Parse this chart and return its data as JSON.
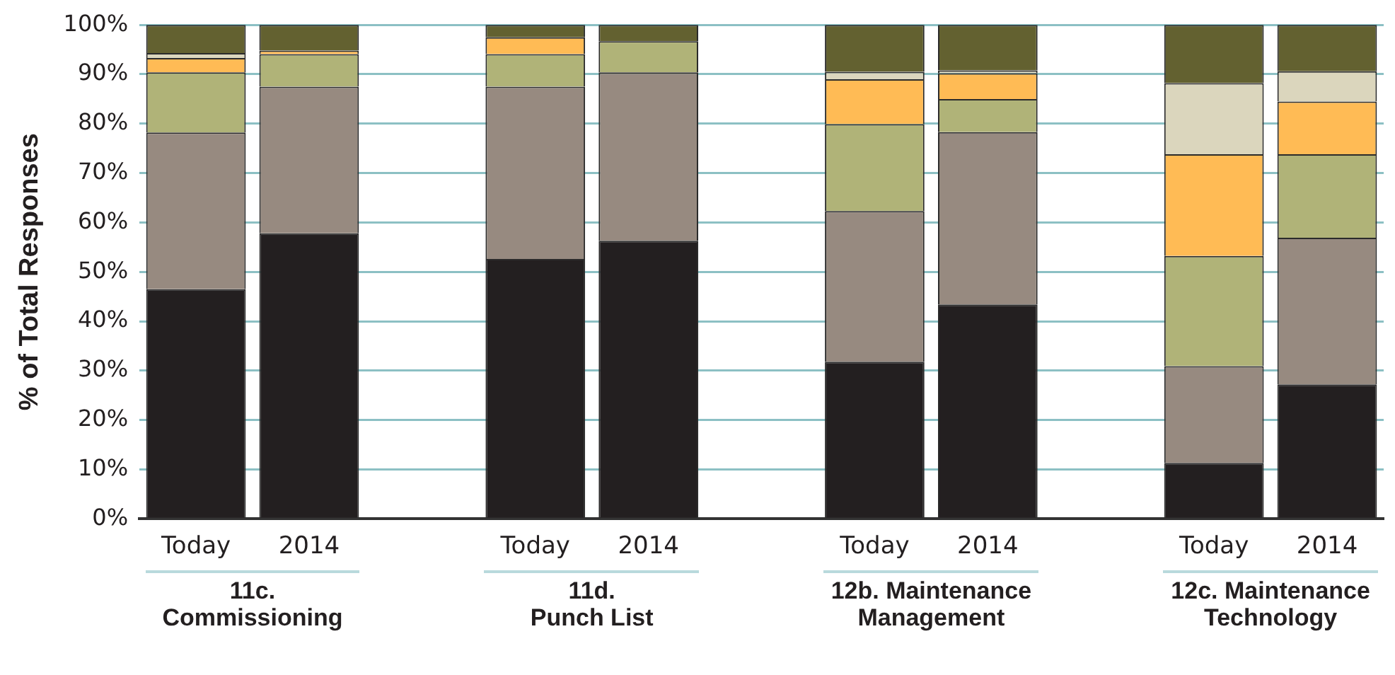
{
  "chart_data": {
    "type": "bar",
    "stacked": true,
    "ylabel": "% of Total Responses",
    "categories": [
      "Today",
      "2014",
      null,
      "Today",
      "2014",
      null,
      "Today",
      "2014",
      null,
      "Today",
      "2014"
    ],
    "series": [
      {
        "color": "#231f20",
        "values": [
          46.5,
          57.8,
          null,
          52.6,
          56.3,
          null,
          31.8,
          43.4,
          null,
          11.3,
          27.2
        ]
      },
      {
        "color": "#978a80",
        "values": [
          31.7,
          29.7,
          null,
          34.9,
          34.1,
          null,
          30.5,
          34.9,
          null,
          19.6,
          29.7
        ]
      },
      {
        "color": "#b0b378",
        "values": [
          12.2,
          6.6,
          null,
          6.6,
          6.3,
          null,
          17.6,
          6.7,
          null,
          22.3,
          16.9
        ]
      },
      {
        "color": "#ffbb55",
        "values": [
          2.9,
          0.7,
          null,
          3.4,
          0,
          null,
          9.1,
          5.2,
          null,
          20.6,
          10.7
        ]
      },
      {
        "color": "#dbd6bd",
        "values": [
          1.0,
          0,
          null,
          0,
          0,
          null,
          1.5,
          0.6,
          null,
          14.4,
          6.1
        ]
      },
      {
        "color": "#636130",
        "values": [
          5.7,
          5.2,
          null,
          2.5,
          3.3,
          null,
          9.5,
          9.2,
          null,
          11.8,
          9.4
        ]
      }
    ],
    "ylim": [
      0,
      100
    ],
    "yticks": [
      {
        "value": 0,
        "label": "0%"
      },
      {
        "value": 10,
        "label": "10%"
      },
      {
        "value": 20,
        "label": "20%"
      },
      {
        "value": 30,
        "label": "30%"
      },
      {
        "value": 40,
        "label": "40%"
      },
      {
        "value": 50,
        "label": "50%"
      },
      {
        "value": 60,
        "label": "60%"
      },
      {
        "value": 70,
        "label": "70%"
      },
      {
        "value": 80,
        "label": "80%"
      },
      {
        "value": 90,
        "label": "90%"
      },
      {
        "value": 100,
        "label": "100%"
      }
    ],
    "grid": "y",
    "legend": false,
    "annotations": [
      "11c.\nCommissioning",
      "11d.\nPunch List",
      "12b. Maintenance\nManagement",
      "12c. Maintenance\nTechnology"
    ]
  }
}
